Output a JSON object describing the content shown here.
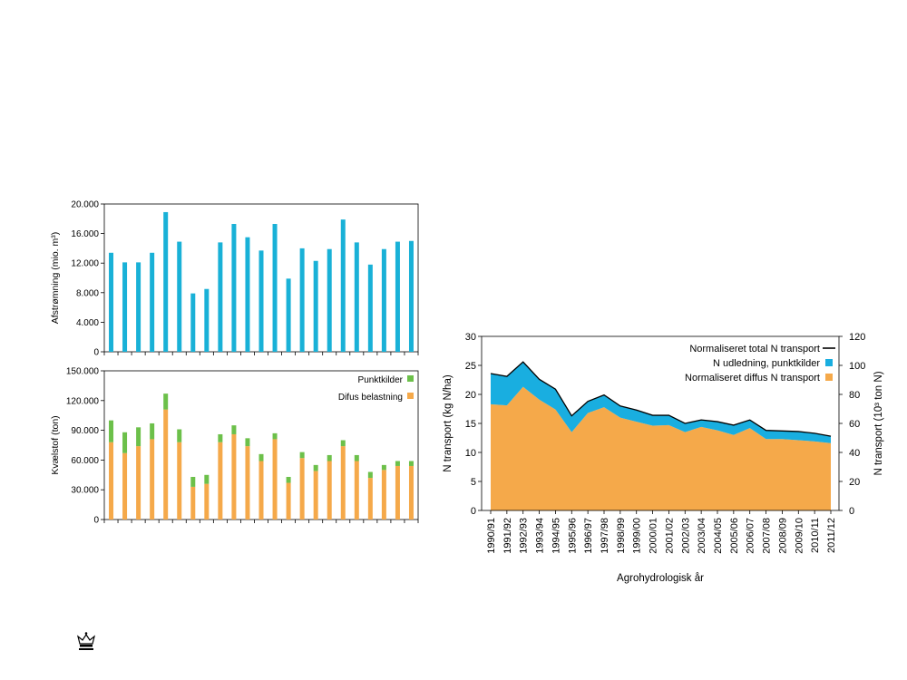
{
  "chart_data": [
    {
      "type": "bar",
      "ylabel": "Afstrømning (mio. m³)",
      "ylim": [
        0,
        20000
      ],
      "yticks": [
        "0",
        "4.000",
        "8.000",
        "12.000",
        "16.000",
        "20.000"
      ],
      "ytick_values": [
        0,
        4000,
        8000,
        12000,
        16000,
        20000
      ],
      "grid": false,
      "series": [
        {
          "color": "#19b1d7",
          "values": [
            13400,
            12100,
            12100,
            13400,
            18900,
            14900,
            7900,
            8500,
            14800,
            17300,
            15500,
            13700,
            17300,
            9900,
            14000,
            12300,
            13900,
            17900,
            14800,
            11800,
            13900,
            14900,
            15000
          ]
        }
      ]
    },
    {
      "type": "bar",
      "stacked": true,
      "ylabel": "Kvælstof (ton)",
      "ylim": [
        0,
        150000
      ],
      "yticks": [
        "0",
        "30.000",
        "60.000",
        "90.000",
        "120.000",
        "150.000"
      ],
      "ytick_values": [
        0,
        30000,
        60000,
        90000,
        120000,
        150000
      ],
      "grid": false,
      "legend_position": "top-right",
      "series": [
        {
          "name": "Difus belastning",
          "color": "#f5a94a",
          "values": [
            78000,
            67000,
            74000,
            81000,
            111000,
            78000,
            33000,
            36000,
            78000,
            86000,
            74000,
            59000,
            81000,
            37000,
            62000,
            49000,
            59000,
            74000,
            59000,
            42000,
            50000,
            54000,
            54000
          ]
        },
        {
          "name": "Punktkilder",
          "color": "#6cc04a",
          "values": [
            22000,
            21000,
            19000,
            16000,
            16000,
            13000,
            10000,
            9000,
            8000,
            9000,
            8000,
            7000,
            6000,
            6000,
            6000,
            6000,
            6000,
            6000,
            6000,
            6000,
            5000,
            5000,
            5000
          ]
        }
      ]
    },
    {
      "type": "area",
      "stacked": true,
      "categories": [
        "1990/91",
        "1991/92",
        "1992/93",
        "1993/94",
        "1994/95",
        "1995/96",
        "1996/97",
        "1997/98",
        "1998/99",
        "1999/00",
        "2000/01",
        "2001/02",
        "2002/03",
        "2003/04",
        "2004/05",
        "2005/06",
        "2006/07",
        "2007/08",
        "2008/09",
        "2009/10",
        "2010/11",
        "2011/12"
      ],
      "xlabel": "Agrohydrologisk år",
      "ylabel": "N transport (kg N/ha)",
      "ylabel_right": "N transport (10³ ton N)",
      "ylim": [
        0,
        30
      ],
      "yticks": [
        "0",
        "5",
        "10",
        "15",
        "20",
        "25",
        "30"
      ],
      "ytick_values": [
        0,
        5,
        10,
        15,
        20,
        25,
        30
      ],
      "ylim_right": [
        0,
        120
      ],
      "yticks_right": [
        "0",
        "20",
        "40",
        "60",
        "80",
        "100",
        "120"
      ],
      "ytick_values_right": [
        0,
        20,
        40,
        60,
        80,
        100,
        120
      ],
      "grid": false,
      "legend_position": "top-right",
      "series": [
        {
          "name": "Normaliseret diffus N transport",
          "color": "#f5a94a",
          "values": [
            18.3,
            18.1,
            21.3,
            19.1,
            17.4,
            13.5,
            16.8,
            17.8,
            16.0,
            15.3,
            14.6,
            14.7,
            13.5,
            14.4,
            13.8,
            13.0,
            14.2,
            12.3,
            12.3,
            12.1,
            11.9,
            11.6
          ]
        },
        {
          "name": "N udledning, punktkilder",
          "color": "#19aee0",
          "values": [
            5.3,
            5.0,
            4.3,
            3.5,
            3.5,
            2.8,
            2.0,
            2.1,
            2.0,
            2.0,
            1.8,
            1.7,
            1.5,
            1.2,
            1.5,
            1.7,
            1.4,
            1.5,
            1.4,
            1.5,
            1.4,
            1.2
          ]
        },
        {
          "name": "Normaliseret total N transport",
          "color": "#000000",
          "values": [
            23.6,
            23.1,
            25.6,
            22.6,
            20.9,
            16.3,
            18.8,
            19.9,
            18.0,
            17.3,
            16.4,
            16.4,
            15.0,
            15.6,
            15.3,
            14.7,
            15.6,
            13.8,
            13.7,
            13.6,
            13.3,
            12.8
          ]
        }
      ]
    }
  ]
}
